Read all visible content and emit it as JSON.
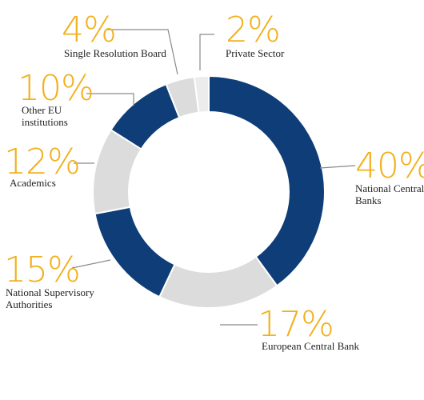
{
  "colors": {
    "dark": "#0e3d78",
    "light": "#dcdcdc",
    "lighter": "#ececec",
    "accent": "#f2b01e",
    "leader": "#8a8a8a"
  },
  "chart_data": {
    "type": "pie",
    "donut": true,
    "unit": "%",
    "slices": [
      {
        "name": "National Central Banks",
        "label_lines": [
          "National Central",
          "Banks"
        ],
        "value": 40,
        "color": "#0e3d78"
      },
      {
        "name": "European Central Bank",
        "label_lines": [
          "European Central Bank"
        ],
        "value": 17,
        "color": "#dcdcdc"
      },
      {
        "name": "National Supervisory Authorities",
        "label_lines": [
          "National Supervisory",
          "Authorities"
        ],
        "value": 15,
        "color": "#0e3d78"
      },
      {
        "name": "Academics",
        "label_lines": [
          "Academics"
        ],
        "value": 12,
        "color": "#dcdcdc"
      },
      {
        "name": "Other EU institutions",
        "label_lines": [
          "Other EU",
          "institutions"
        ],
        "value": 10,
        "color": "#0e3d78"
      },
      {
        "name": "Single Resolution Board",
        "label_lines": [
          "Single Resolution Board"
        ],
        "value": 4,
        "color": "#dcdcdc"
      },
      {
        "name": "Private Sector",
        "label_lines": [
          "Private Sector"
        ],
        "value": 2,
        "color": "#ececec"
      }
    ]
  }
}
